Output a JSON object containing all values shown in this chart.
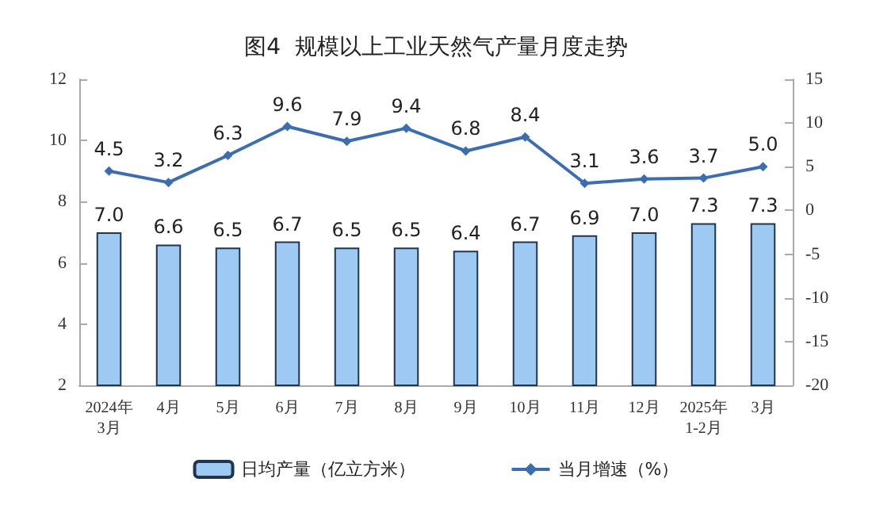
{
  "chart_data": {
    "type": "bar",
    "title": "图4  规模以上工业天然气产量月度走势",
    "categories": [
      "2024年\n3月",
      "4月",
      "5月",
      "6月",
      "7月",
      "8月",
      "9月",
      "10月",
      "11月",
      "12月",
      "2025年\n1-2月",
      "3月"
    ],
    "series": [
      {
        "name": "日均产量（亿立方米）",
        "color": "#9ec9f2",
        "values": [
          7.0,
          6.6,
          6.5,
          6.7,
          6.5,
          6.5,
          6.4,
          6.7,
          6.9,
          7.0,
          7.3,
          7.3
        ],
        "value_labels": [
          "7.0",
          "6.6",
          "6.5",
          "6.7",
          "6.5",
          "6.5",
          "6.4",
          "6.7",
          "6.9",
          "7.0",
          "7.3",
          "7.3"
        ]
      },
      {
        "name": "当月增速（%）",
        "type": "line",
        "axis": "y2",
        "color": "#3a6db5",
        "marker": "diamond",
        "values": [
          4.5,
          3.2,
          6.3,
          9.6,
          7.9,
          9.4,
          6.8,
          8.4,
          3.1,
          3.6,
          3.7,
          5.0
        ],
        "value_labels": [
          "4.5",
          "3.2",
          "6.3",
          "9.6",
          "7.9",
          "9.4",
          "6.8",
          "8.4",
          "3.1",
          "3.6",
          "3.7",
          "5.0"
        ]
      }
    ],
    "ylim": [
      2,
      12
    ],
    "yticks": [
      2,
      4,
      6,
      8,
      10,
      12
    ],
    "y2lim": [
      -20,
      15
    ],
    "y2ticks": [
      -20,
      -15,
      -10,
      -5,
      0,
      5,
      10,
      15
    ],
    "legend": "bottom"
  }
}
